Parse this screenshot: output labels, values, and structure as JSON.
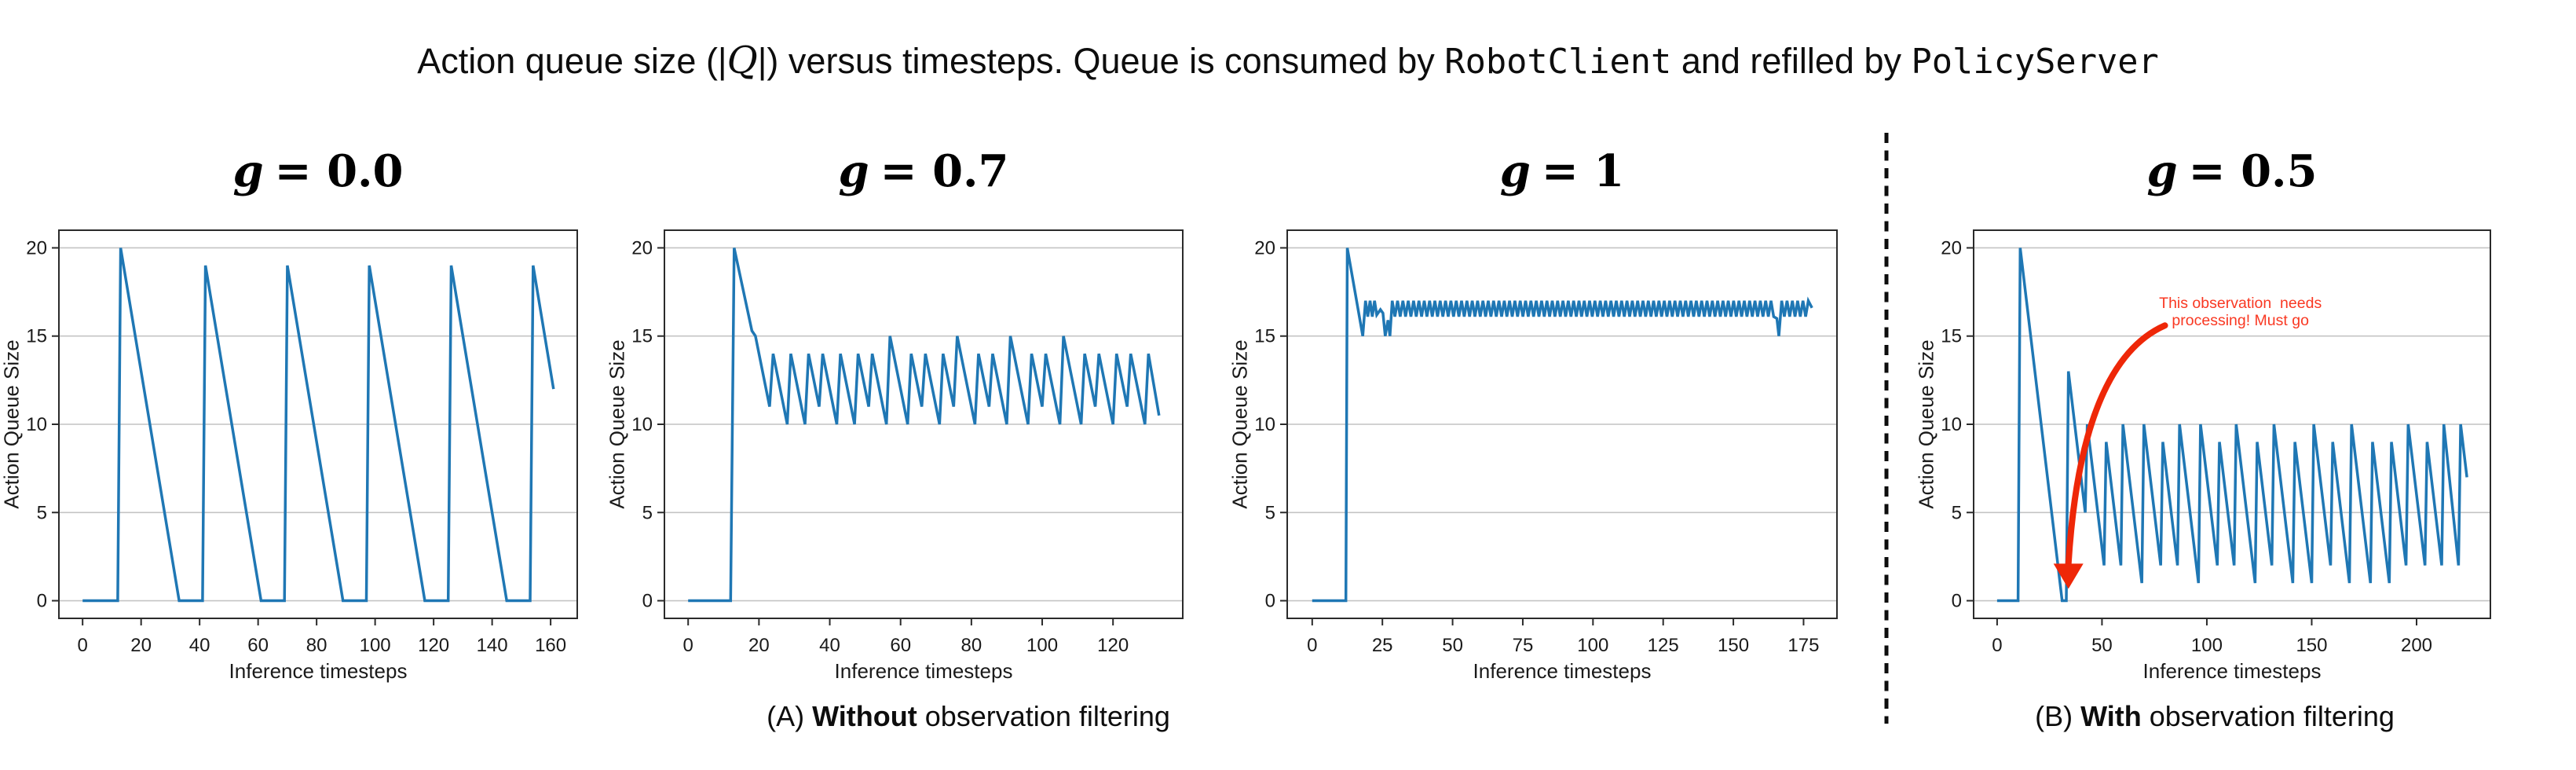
{
  "figure": {
    "title_segments": [
      {
        "text": "Action queue size (|",
        "style": "sans"
      },
      {
        "text": "Q",
        "style": "script"
      },
      {
        "text": "|) versus timesteps. Queue is consumed by ",
        "style": "sans"
      },
      {
        "text": "RobotClient",
        "style": "mono"
      },
      {
        "text": " and refilled by ",
        "style": "sans"
      },
      {
        "text": "PolicyServer",
        "style": "mono"
      }
    ],
    "caption_a_segments": [
      {
        "text": "(A) ",
        "style": "sans"
      },
      {
        "text": "Without",
        "style": "bold"
      },
      {
        "text": " observation filtering",
        "style": "sans"
      }
    ],
    "caption_b_segments": [
      {
        "text": "(B) ",
        "style": "sans"
      },
      {
        "text": "With",
        "style": "bold"
      },
      {
        "text": " observation filtering",
        "style": "sans"
      }
    ],
    "colors": {
      "line": "#1f77b4",
      "grid": "#c4c4c4",
      "spine": "#2b2b2b",
      "annotation_text": "#f93822",
      "annotation_arrow": "#ee2708",
      "divider": "#0d0d0d"
    }
  },
  "chart_data": [
    {
      "type": "line",
      "title": {
        "var": "g",
        "rest": "= 0.0"
      },
      "xlabel": "Inference timesteps",
      "ylabel": "Action Queue Size",
      "x_ticks": [
        0,
        20,
        40,
        60,
        80,
        100,
        120,
        140,
        160
      ],
      "y_ticks": [
        0,
        5,
        10,
        15,
        20
      ],
      "xlim": [
        -8.1,
        169.1
      ],
      "ylim": [
        -1,
        21
      ],
      "grid": "horizontal",
      "series_segments": [
        {
          "type": "points",
          "pts": [
            [
              0,
              0
            ],
            [
              12,
              0
            ],
            [
              13,
              20
            ],
            [
              33,
              0
            ],
            [
              41,
              0
            ],
            [
              42,
              19
            ],
            [
              61,
              0
            ],
            [
              69,
              0
            ],
            [
              70,
              19
            ],
            [
              89,
              0
            ],
            [
              97,
              0
            ],
            [
              98,
              19
            ],
            [
              117,
              0
            ],
            [
              125,
              0
            ],
            [
              126,
              19
            ],
            [
              145,
              0
            ],
            [
              153,
              0
            ],
            [
              154,
              19
            ],
            [
              161,
              12
            ]
          ]
        }
      ]
    },
    {
      "type": "line",
      "title": {
        "var": "g",
        "rest": "= 0.7"
      },
      "xlabel": "Inference timesteps",
      "ylabel": "Action Queue Size",
      "x_ticks": [
        0,
        20,
        40,
        60,
        80,
        100,
        120
      ],
      "y_ticks": [
        0,
        5,
        10,
        15,
        20
      ],
      "xlim": [
        -6.7,
        139.7
      ],
      "ylim": [
        -1,
        21
      ],
      "grid": "horizontal",
      "series_segments": [
        {
          "type": "points",
          "pts": [
            [
              0,
              0
            ],
            [
              12,
              0
            ],
            [
              13,
              20
            ],
            [
              18,
              15.3
            ],
            [
              19,
              15
            ],
            [
              23,
              11
            ],
            [
              24,
              14
            ],
            [
              28,
              10
            ],
            [
              29,
              14
            ],
            [
              33,
              10
            ],
            [
              34,
              14
            ],
            [
              37,
              11
            ],
            [
              38,
              14
            ],
            [
              42,
              10
            ],
            [
              43,
              14
            ],
            [
              47,
              10
            ],
            [
              48,
              14
            ],
            [
              51,
              11
            ],
            [
              52,
              14
            ],
            [
              56,
              10
            ],
            [
              57,
              15
            ],
            [
              62,
              10
            ],
            [
              63,
              14
            ],
            [
              66,
              11
            ],
            [
              67,
              14
            ],
            [
              71,
              10
            ],
            [
              72,
              14
            ],
            [
              75,
              11
            ],
            [
              76,
              15
            ],
            [
              81,
              10
            ],
            [
              82,
              14
            ],
            [
              85,
              11
            ],
            [
              86,
              14
            ],
            [
              90,
              10
            ],
            [
              91,
              15
            ],
            [
              96,
              10
            ],
            [
              97,
              14
            ],
            [
              100,
              11
            ],
            [
              101,
              14
            ],
            [
              105,
              10
            ],
            [
              106,
              15
            ],
            [
              111,
              10
            ],
            [
              112,
              14
            ],
            [
              115,
              11
            ],
            [
              116,
              14
            ],
            [
              120,
              10
            ],
            [
              121,
              14
            ],
            [
              124,
              11
            ],
            [
              125,
              14
            ],
            [
              129,
              10
            ],
            [
              130,
              14
            ],
            [
              133,
              10.5
            ]
          ]
        }
      ]
    },
    {
      "type": "line",
      "title": {
        "var": "g",
        "rest": "= 1"
      },
      "xlabel": "Inference timesteps",
      "ylabel": "Action Queue Size",
      "x_ticks": [
        0,
        25,
        50,
        75,
        100,
        125,
        150,
        175
      ],
      "y_ticks": [
        0,
        5,
        10,
        15,
        20
      ],
      "xlim": [
        -8.9,
        186.9
      ],
      "ylim": [
        -1,
        21
      ],
      "grid": "horizontal",
      "series_segments": [
        {
          "type": "points",
          "pts": [
            [
              0,
              0
            ],
            [
              12,
              0
            ],
            [
              12.5,
              20
            ],
            [
              18,
              15
            ],
            [
              19,
              17
            ],
            [
              19.8,
              16.1
            ],
            [
              20.6,
              17
            ],
            [
              21.4,
              16.1
            ],
            [
              22.2,
              17
            ],
            [
              23,
              16.2
            ],
            [
              24.3,
              16.5
            ],
            [
              25.2,
              16.3
            ],
            [
              26,
              15
            ],
            [
              27,
              15.9
            ],
            [
              27.7,
              15
            ],
            [
              28.5,
              17
            ]
          ]
        },
        {
          "type": "zigzag",
          "x_end": 165,
          "half_period": 0.95,
          "high": 17,
          "low": 16.1
        },
        {
          "type": "points",
          "pts": [
            [
              165.5,
              16
            ],
            [
              166.2,
              15
            ],
            [
              167.2,
              17
            ]
          ]
        },
        {
          "type": "zigzag",
          "x_end": 177,
          "half_period": 0.95,
          "high": 17,
          "low": 16.1
        },
        {
          "type": "points",
          "pts": [
            [
              178,
              16.6
            ]
          ]
        }
      ]
    },
    {
      "type": "line",
      "title": {
        "var": "g",
        "rest": "= 0.5"
      },
      "xlabel": "Inference timesteps",
      "ylabel": "Action Queue Size",
      "x_ticks": [
        0,
        50,
        100,
        150,
        200
      ],
      "y_ticks": [
        0,
        5,
        10,
        15,
        20
      ],
      "xlim": [
        -11.2,
        235.2
      ],
      "ylim": [
        -1,
        21
      ],
      "grid": "horizontal",
      "series_segments": [
        {
          "type": "points",
          "pts": [
            [
              0,
              0
            ],
            [
              10,
              0
            ],
            [
              11,
              20
            ],
            [
              31,
              0
            ],
            [
              33,
              0
            ],
            [
              34,
              13
            ],
            [
              42,
              5
            ],
            [
              43,
              10
            ],
            [
              51,
              2
            ],
            [
              52,
              9
            ],
            [
              59,
              2
            ],
            [
              60,
              10
            ],
            [
              69,
              1
            ],
            [
              70,
              10
            ],
            [
              78,
              2
            ],
            [
              79,
              9
            ],
            [
              86,
              2
            ],
            [
              87,
              10
            ],
            [
              96,
              1
            ],
            [
              97,
              10
            ],
            [
              105,
              2
            ],
            [
              106,
              9
            ],
            [
              113,
              2
            ],
            [
              114,
              10
            ],
            [
              123,
              1
            ],
            [
              124,
              9
            ],
            [
              131,
              2
            ],
            [
              132,
              10
            ],
            [
              141,
              1
            ],
            [
              142,
              9
            ],
            [
              150,
              1
            ],
            [
              151,
              10
            ],
            [
              159,
              2
            ],
            [
              160,
              9
            ],
            [
              168,
              1
            ],
            [
              169,
              10
            ],
            [
              178,
              1
            ],
            [
              179,
              9
            ],
            [
              187,
              1
            ],
            [
              188,
              9
            ],
            [
              195,
              2
            ],
            [
              196,
              10
            ],
            [
              204,
              2
            ],
            [
              205,
              9
            ],
            [
              212,
              2
            ],
            [
              213,
              10
            ],
            [
              220,
              2
            ],
            [
              221,
              10
            ],
            [
              224,
              7
            ]
          ]
        }
      ],
      "annotation": {
        "lines": [
          "This observation  needs",
          "processing! Must go"
        ],
        "center": [
          116,
          16.9
        ],
        "line_height_px": 22,
        "arrow": {
          "start": [
            80,
            15.6
          ],
          "control": [
            40,
            13.5
          ],
          "end": [
            34,
            2.1
          ]
        }
      }
    }
  ]
}
